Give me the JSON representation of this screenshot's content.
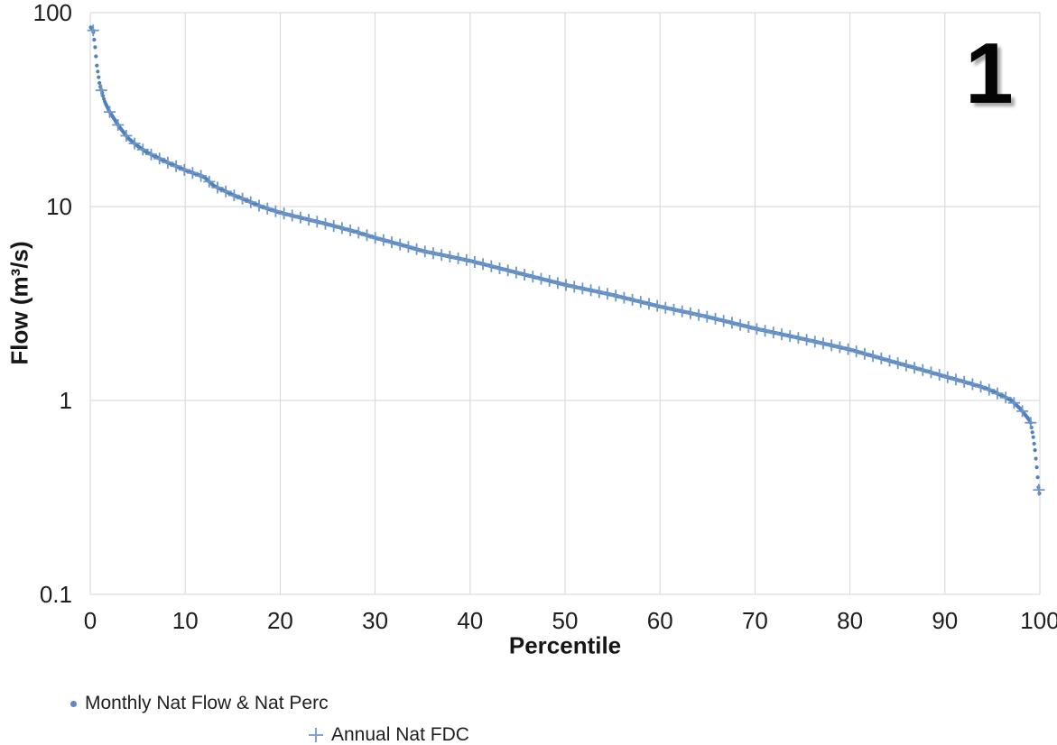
{
  "annotation": {
    "text": "1"
  },
  "legend": {
    "position": "bottom-left",
    "items": [
      {
        "label": "Monthly Nat Flow & Nat Perc",
        "marker": "dot",
        "color": "#5e88bf"
      },
      {
        "label": "Annual Nat FDC",
        "marker": "plus",
        "color": "#7fa3d0"
      }
    ]
  },
  "chart_data": {
    "type": "scatter",
    "title": "",
    "xlabel": "Percentile",
    "ylabel": "Flow (m³/s)",
    "grid": true,
    "x_axis": {
      "scale": "linear",
      "min": 0,
      "max": 100,
      "tick_values": [
        0,
        10,
        20,
        30,
        40,
        50,
        60,
        70,
        80,
        90,
        100
      ],
      "tick_labels": [
        "0",
        "10",
        "20",
        "30",
        "40",
        "50",
        "60",
        "70",
        "80",
        "90",
        "100"
      ]
    },
    "y_axis": {
      "scale": "log",
      "min": 0.1,
      "max": 100,
      "tick_values": [
        100,
        10,
        1,
        0.1
      ],
      "tick_labels": [
        "100",
        "10",
        "1",
        "0.1"
      ]
    },
    "colors": {
      "monthly_dots": "#4f81bd",
      "annual_plus": "#6f96c9",
      "gridline": "#d6d6d6",
      "text": "#1e1e1e"
    },
    "fdc_curve": {
      "comment": "Flow duration curve read off the plot; both series lie on this curve. Flow in m3/s at given exceedance percentile.",
      "percentile": [
        0.05,
        0.3,
        0.5,
        0.7,
        1,
        1.5,
        2,
        3,
        4,
        5,
        6,
        8,
        10,
        12,
        13,
        15,
        16,
        18,
        20,
        22,
        25,
        28,
        30,
        33,
        35,
        40,
        45,
        50,
        55,
        60,
        65,
        70,
        75,
        80,
        85,
        88,
        90,
        92,
        94,
        95,
        96,
        97,
        98,
        99,
        99.3,
        99.5,
        99.7,
        99.85,
        100
      ],
      "flow_m3s": [
        84,
        81,
        67,
        53,
        42.5,
        35,
        31,
        26,
        22.5,
        20.5,
        19,
        17,
        15.4,
        14.2,
        12.8,
        11.5,
        11.0,
        10.0,
        9.3,
        8.8,
        8.1,
        7.4,
        6.9,
        6.3,
        5.9,
        5.25,
        4.55,
        3.95,
        3.5,
        3.05,
        2.7,
        2.35,
        2.08,
        1.83,
        1.56,
        1.42,
        1.33,
        1.25,
        1.17,
        1.12,
        1.06,
        1.0,
        0.9,
        0.78,
        0.65,
        0.55,
        0.44,
        0.36,
        0.32
      ]
    },
    "series": [
      {
        "name": "Monthly Nat Flow & Nat Perc",
        "marker": "dot",
        "color": "#4f81bd",
        "n_points": 1080,
        "values_from": "fdc_curve"
      },
      {
        "name": "Annual Nat FDC",
        "marker": "plus",
        "color": "#6f96c9",
        "n_points": 115,
        "first_percentile": 0.3,
        "last_percentile": 99.9,
        "values_from": "fdc_curve"
      }
    ]
  }
}
